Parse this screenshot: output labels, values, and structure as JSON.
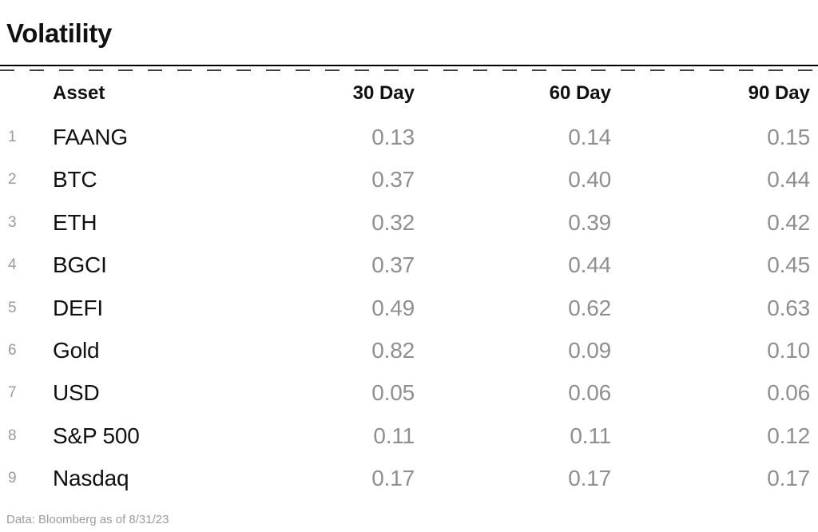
{
  "page": {
    "title": "Volatility",
    "footer": "Data: Bloomberg as of 8/31/23"
  },
  "colors": {
    "text": "#111111",
    "value_gray": "#8f8f8f",
    "row_number_gray": "#9b9b9b",
    "rule_black": "#000000",
    "dash_gray": "#3f3f3f",
    "background": "#ffffff"
  },
  "chart_data": {
    "type": "table",
    "title": "Volatility",
    "columns": [
      "Asset",
      "30 Day",
      "60 Day",
      "90 Day"
    ],
    "rows": [
      {
        "num": "1",
        "asset": "FAANG",
        "d30": "0.13",
        "d60": "0.14",
        "d90": "0.15"
      },
      {
        "num": "2",
        "asset": "BTC",
        "d30": "0.37",
        "d60": "0.40",
        "d90": "0.44"
      },
      {
        "num": "3",
        "asset": "ETH",
        "d30": "0.32",
        "d60": "0.39",
        "d90": "0.42"
      },
      {
        "num": "4",
        "asset": "BGCI",
        "d30": "0.37",
        "d60": "0.44",
        "d90": "0.45"
      },
      {
        "num": "5",
        "asset": "DEFI",
        "d30": "0.49",
        "d60": "0.62",
        "d90": "0.63"
      },
      {
        "num": "6",
        "asset": "Gold",
        "d30": "0.82",
        "d60": "0.09",
        "d90": "0.10"
      },
      {
        "num": "7",
        "asset": "USD",
        "d30": "0.05",
        "d60": "0.06",
        "d90": "0.06"
      },
      {
        "num": "8",
        "asset": "S&P 500",
        "d30": "0.11",
        "d60": "0.11",
        "d90": "0.12"
      },
      {
        "num": "9",
        "asset": "Nasdaq",
        "d30": "0.17",
        "d60": "0.17",
        "d90": "0.17"
      }
    ],
    "source": "Data: Bloomberg as of 8/31/23"
  }
}
